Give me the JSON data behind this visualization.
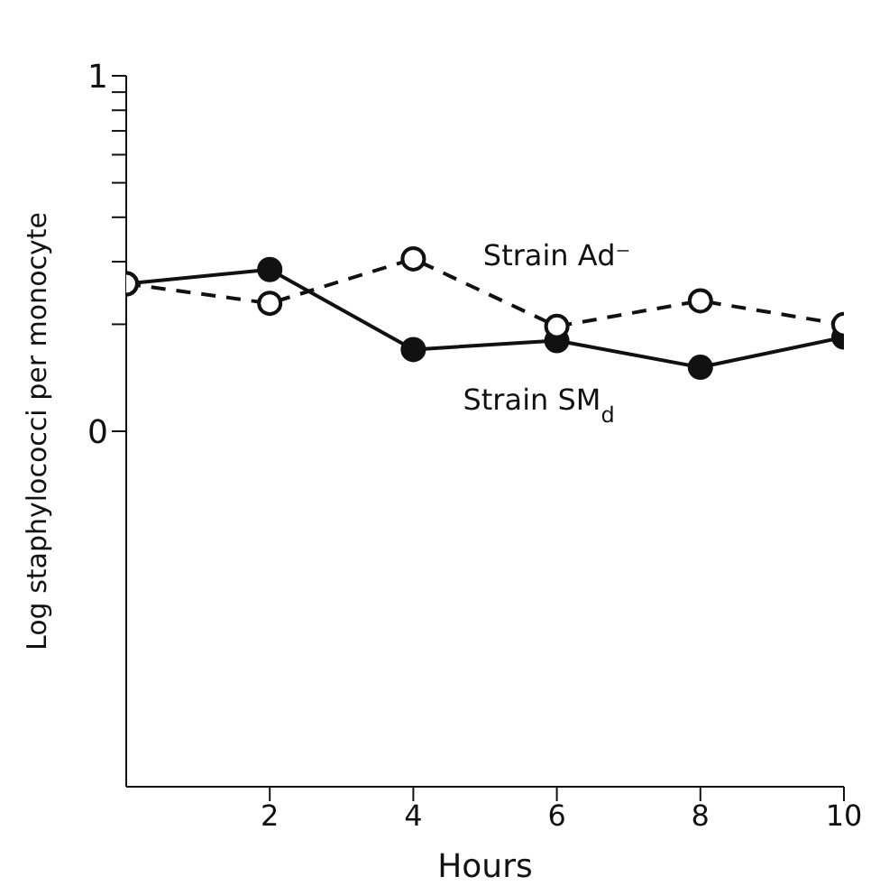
{
  "chart_data": {
    "type": "line",
    "xlabel": "Hours",
    "ylabel": "Log staphylococci per monocyte",
    "x": [
      0,
      2,
      4,
      6,
      8,
      10
    ],
    "series": [
      {
        "name": "Strain SM$_{d}$",
        "color": "#111111",
        "values": [
          0.415,
          0.455,
          0.23,
          0.255,
          0.18,
          0.265
        ],
        "line_style": "solid",
        "marker": "circle"
      },
      {
        "name": "Strain Ad⁻",
        "color": "#111111",
        "values": [
          0.415,
          0.36,
          0.485,
          0.295,
          0.367,
          0.3
        ],
        "line_style": "dashed",
        "marker": "circle"
      }
    ],
    "xlim": [
      0,
      10
    ],
    "xticks": [
      2,
      4,
      6,
      8,
      10
    ],
    "ylim": [
      -1,
      1
    ],
    "yticks": [
      0,
      {
        "value": 0.301,
        "label": null
      },
      {
        "value": 0.477,
        "label": null
      },
      {
        "value": 0.602,
        "label": null
      },
      {
        "value": 0.699,
        "label": null
      },
      {
        "value": 0.778,
        "label": null
      },
      {
        "value": 0.845,
        "label": null
      },
      {
        "value": 0.903,
        "label": null
      },
      {
        "value": 0.954,
        "label": null
      },
      1
    ],
    "grid": false,
    "legend": false
  }
}
